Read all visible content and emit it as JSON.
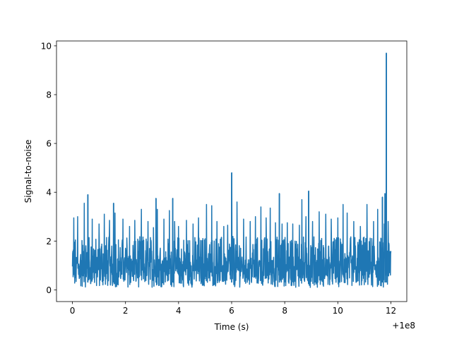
{
  "chart_data": {
    "type": "line",
    "xlabel": "Time (s)",
    "ylabel": "Signal-to-noise",
    "x_offset_label": "+1e8",
    "xlim": [
      -0.6,
      12.6
    ],
    "ylim": [
      -0.48,
      10.2
    ],
    "x_ticks": [
      0,
      2,
      4,
      6,
      8,
      10,
      12
    ],
    "x_tick_labels": [
      "0",
      "2",
      "4",
      "6",
      "8",
      "10",
      "12"
    ],
    "y_ticks": [
      0,
      2,
      4,
      6,
      8,
      10
    ],
    "y_tick_labels": [
      "0",
      "2",
      "4",
      "6",
      "8",
      "10"
    ],
    "grid": false,
    "series": [
      {
        "color": "#1f77b4",
        "x_start": 0,
        "x_end": 12,
        "baseline_band": [
          0.1,
          2.2
        ],
        "peaks": [
          {
            "x": 0.05,
            "y": 2.95
          },
          {
            "x": 0.2,
            "y": 3.0
          },
          {
            "x": 0.45,
            "y": 3.55
          },
          {
            "x": 0.75,
            "y": 2.9
          },
          {
            "x": 1.0,
            "y": 2.7
          },
          {
            "x": 1.2,
            "y": 3.1
          },
          {
            "x": 1.4,
            "y": 2.85
          },
          {
            "x": 1.6,
            "y": 3.15
          },
          {
            "x": 1.9,
            "y": 2.9
          },
          {
            "x": 2.15,
            "y": 2.6
          },
          {
            "x": 2.35,
            "y": 2.85
          },
          {
            "x": 2.6,
            "y": 3.3
          },
          {
            "x": 2.85,
            "y": 2.8
          },
          {
            "x": 3.05,
            "y": 2.55
          },
          {
            "x": 3.2,
            "y": 3.3
          },
          {
            "x": 3.45,
            "y": 2.9
          },
          {
            "x": 3.65,
            "y": 3.25
          },
          {
            "x": 3.85,
            "y": 2.8
          },
          {
            "x": 4.0,
            "y": 2.6
          },
          {
            "x": 4.3,
            "y": 2.85
          },
          {
            "x": 4.55,
            "y": 2.7
          },
          {
            "x": 4.75,
            "y": 2.95
          },
          {
            "x": 5.05,
            "y": 3.5
          },
          {
            "x": 5.25,
            "y": 3.45
          },
          {
            "x": 5.45,
            "y": 2.8
          },
          {
            "x": 5.7,
            "y": 2.6
          },
          {
            "x": 5.85,
            "y": 2.65
          },
          {
            "x": 6.2,
            "y": 3.6
          },
          {
            "x": 6.45,
            "y": 2.9
          },
          {
            "x": 6.7,
            "y": 2.8
          },
          {
            "x": 6.9,
            "y": 3.0
          },
          {
            "x": 7.1,
            "y": 3.4
          },
          {
            "x": 7.3,
            "y": 2.95
          },
          {
            "x": 7.45,
            "y": 3.35
          },
          {
            "x": 7.65,
            "y": 2.75
          },
          {
            "x": 7.9,
            "y": 2.7
          },
          {
            "x": 8.1,
            "y": 2.75
          },
          {
            "x": 8.3,
            "y": 2.7
          },
          {
            "x": 8.55,
            "y": 2.65
          },
          {
            "x": 8.65,
            "y": 3.7
          },
          {
            "x": 8.8,
            "y": 3.0
          },
          {
            "x": 9.05,
            "y": 2.8
          },
          {
            "x": 9.3,
            "y": 3.2
          },
          {
            "x": 9.55,
            "y": 3.1
          },
          {
            "x": 9.75,
            "y": 2.9
          },
          {
            "x": 10.0,
            "y": 2.95
          },
          {
            "x": 10.2,
            "y": 3.5
          },
          {
            "x": 10.35,
            "y": 3.15
          },
          {
            "x": 10.6,
            "y": 2.8
          },
          {
            "x": 10.85,
            "y": 2.6
          },
          {
            "x": 11.1,
            "y": 3.5
          },
          {
            "x": 11.35,
            "y": 2.8
          },
          {
            "x": 11.5,
            "y": 3.3
          },
          {
            "x": 11.75,
            "y": 2.7
          },
          {
            "x": 11.9,
            "y": 2.8
          }
        ],
        "spikes": [
          {
            "x": 0.58,
            "y": 3.9
          },
          {
            "x": 1.55,
            "y": 3.55
          },
          {
            "x": 3.15,
            "y": 3.75
          },
          {
            "x": 3.78,
            "y": 3.75
          },
          {
            "x": 6.0,
            "y": 4.8
          },
          {
            "x": 7.8,
            "y": 3.95
          },
          {
            "x": 8.9,
            "y": 4.05
          },
          {
            "x": 11.68,
            "y": 3.8
          },
          {
            "x": 11.78,
            "y": 3.95
          },
          {
            "x": 11.83,
            "y": 9.7
          }
        ]
      }
    ]
  }
}
